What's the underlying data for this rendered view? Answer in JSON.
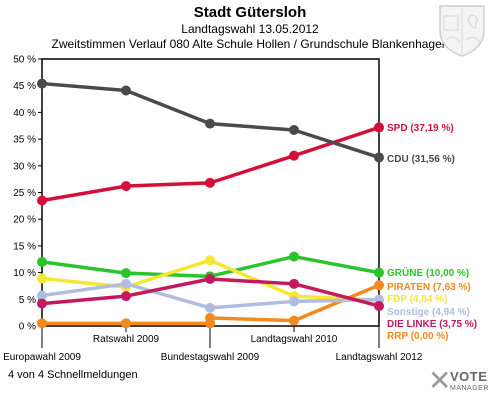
{
  "header": {
    "title": "Stadt Gütersloh",
    "subtitle": "Landtagswahl 13.05.2012",
    "description": "Zweitstimmen Verlauf 080 Alte Schule Hollen / Grundschule Blankenhagen"
  },
  "footer": {
    "note": "4 von 4 Schnellmeldungen"
  },
  "logo": {
    "line1": "VOTE",
    "line2": "MANAGER"
  },
  "chart_data": {
    "type": "line",
    "title": "Stadt Gütersloh",
    "subtitle": "Zweitstimmen Verlauf 080 Alte Schule Hollen / Grundschule Blankenhagen",
    "categories": [
      "Europawahl 2009",
      "Ratswahl 2009",
      "Bundestagswahl 2009",
      "Landtagswahl 2010",
      "Landtagswahl 2012"
    ],
    "ylim": [
      0,
      50
    ],
    "yticks": [
      "0 %",
      "5 %",
      "10 %",
      "15 %",
      "20 %",
      "25 %",
      "30 %",
      "35 %",
      "40 %",
      "45 %",
      "50 %"
    ],
    "grid": false,
    "series": [
      {
        "name": "SPD",
        "label": "SPD (37,19 %)",
        "color": "#d4103a",
        "values": [
          23.5,
          26.2,
          26.8,
          31.9,
          37.19
        ]
      },
      {
        "name": "CDU",
        "label": "CDU (31,56 %)",
        "color": "#4a4a4a",
        "values": [
          45.4,
          44.1,
          37.9,
          36.7,
          31.56
        ]
      },
      {
        "name": "GRÜNE",
        "label": "GRÜNE (10,00 %)",
        "color": "#2cc42c",
        "values": [
          12.0,
          9.9,
          9.3,
          13.0,
          10.0
        ]
      },
      {
        "name": "PIRATEN",
        "label": "PIRATEN (7,63 %)",
        "color": "#f28a1e",
        "values": [
          null,
          null,
          1.5,
          1.0,
          7.63
        ]
      },
      {
        "name": "FDP",
        "label": "FDP (4,84 %)",
        "color": "#f7e733",
        "values": [
          8.9,
          7.3,
          12.3,
          5.6,
          4.84
        ]
      },
      {
        "name": "Sonstige",
        "label": "Sonstige (4,94 %)",
        "color": "#b0bde0",
        "values": [
          5.7,
          7.9,
          3.4,
          4.6,
          4.94
        ]
      },
      {
        "name": "DIE LINKE",
        "label": "DIE LINKE (3,75 %)",
        "color": "#c5195e",
        "values": [
          4.2,
          5.6,
          8.8,
          7.9,
          3.75
        ]
      },
      {
        "name": "RRP",
        "label": "RRP (0,00 %)",
        "color": "#f28a1e",
        "values": [
          0.5,
          0.5,
          0.5,
          null,
          null
        ]
      }
    ]
  }
}
